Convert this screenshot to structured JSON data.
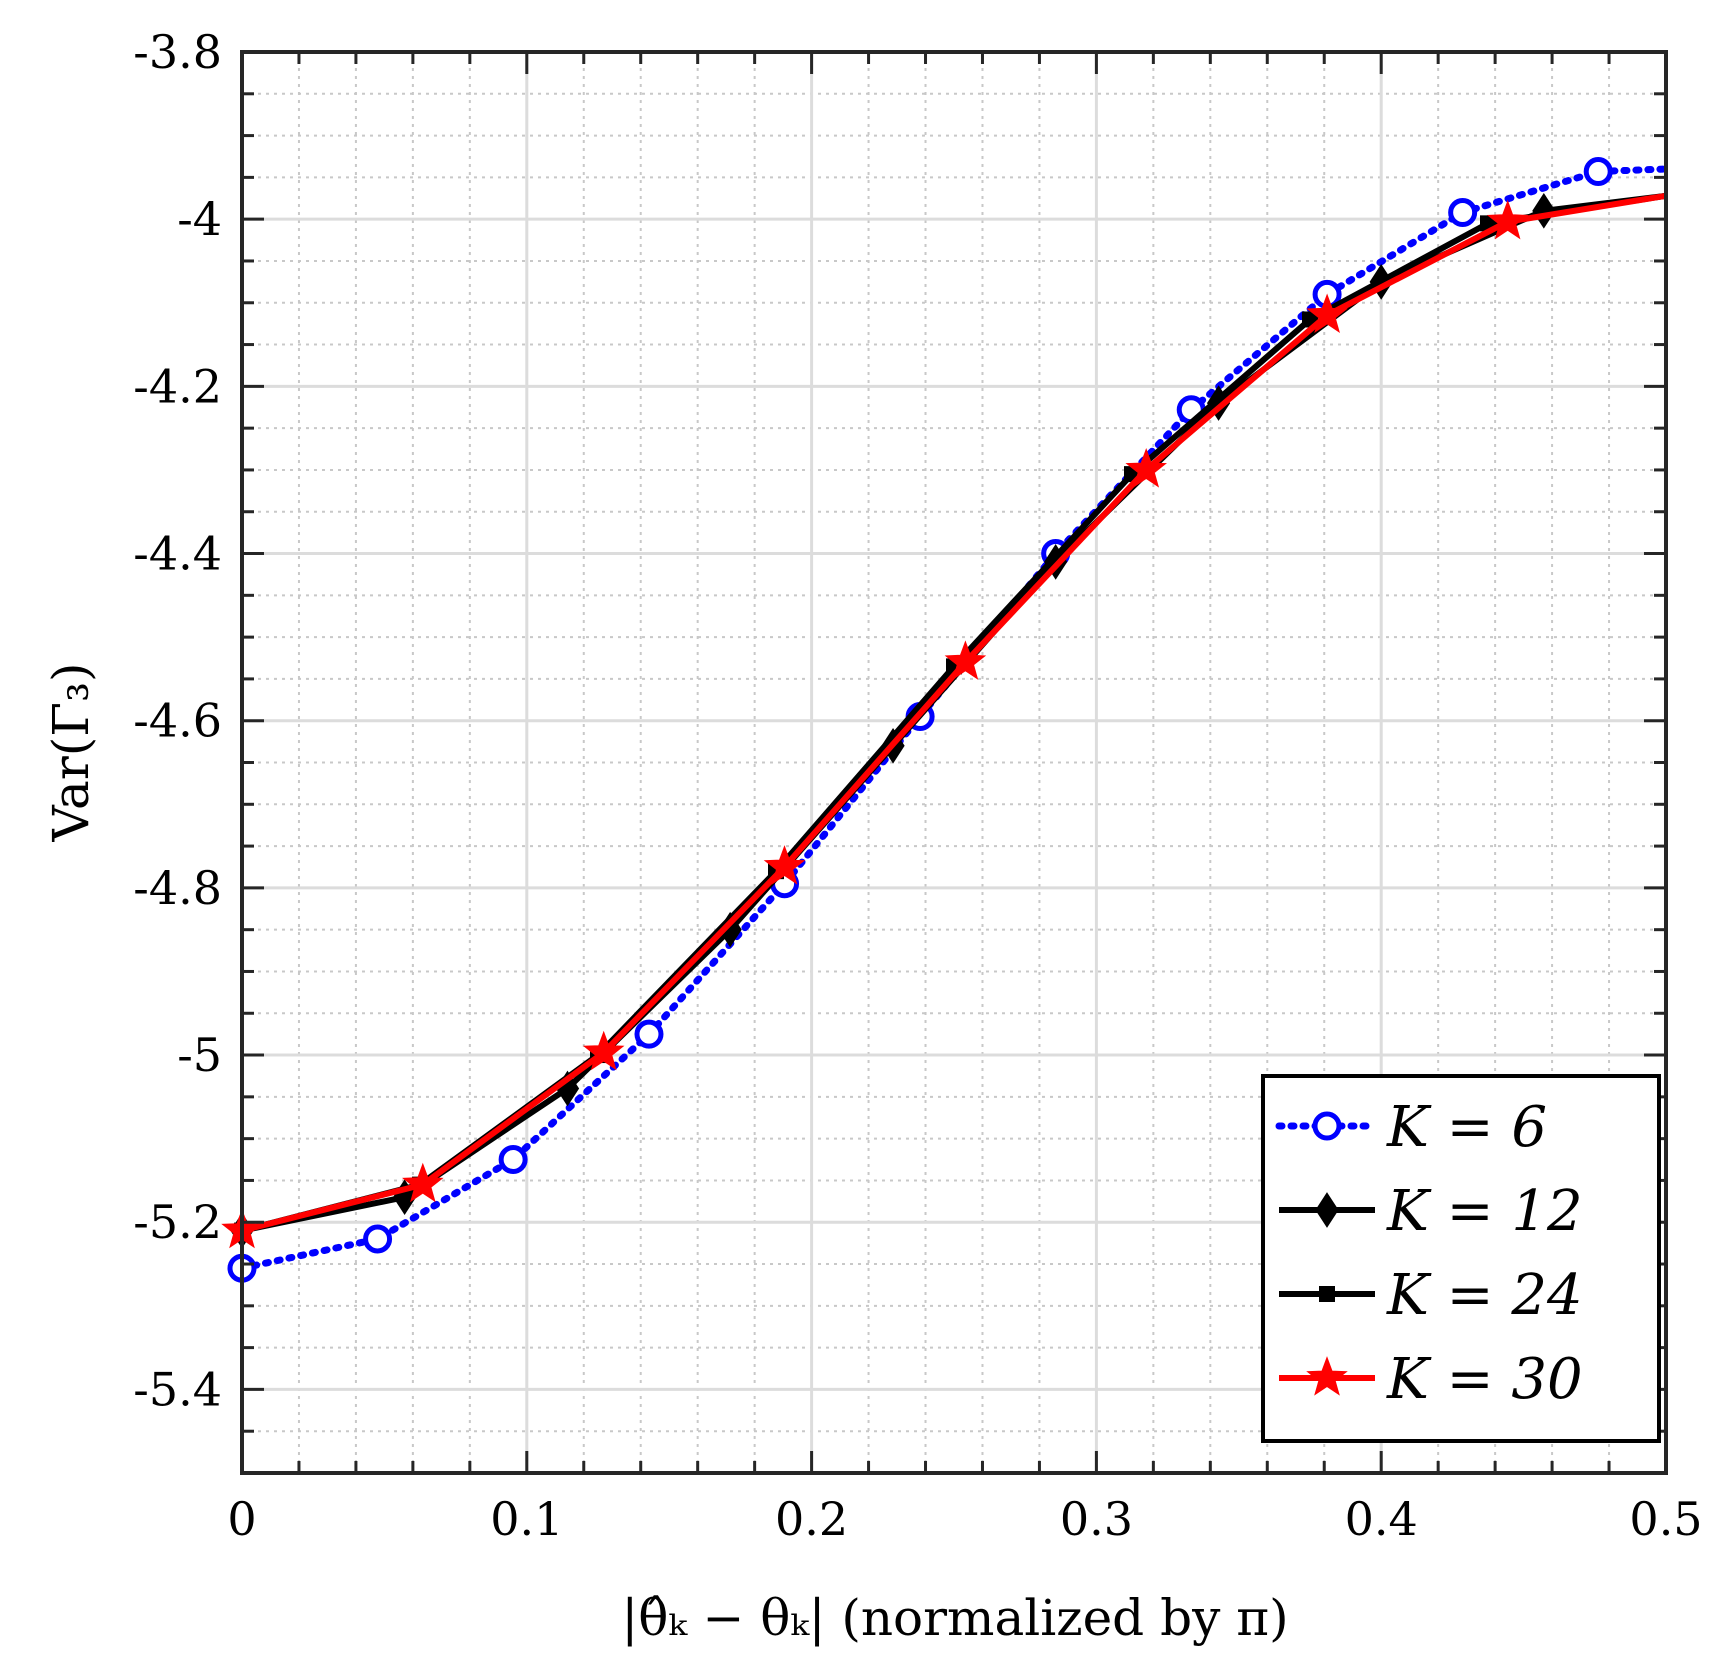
{
  "chart_data": {
    "type": "line",
    "xlabel": "|θ̂ₖ − θₖ| (normalized by π)",
    "ylabel": "Var(Γ₃)",
    "xlim": [
      0,
      0.5
    ],
    "ylim": [
      -5.5,
      -3.8
    ],
    "x_ticks": [
      "0",
      "0.1",
      "0.2",
      "0.3",
      "0.4",
      "0.5"
    ],
    "y_ticks": [
      "-3.8",
      "-4",
      "-4.2",
      "-4.4",
      "-4.6",
      "-4.8",
      "-5",
      "-5.2",
      "-5.4"
    ],
    "grid": true,
    "legend_position": "bottom-right",
    "series": [
      {
        "name": "K = 6",
        "color": "#0000ff",
        "line": "dotted",
        "marker": "circle",
        "x": [
          0,
          0.0476,
          0.0952,
          0.1429,
          0.1905,
          0.2381,
          0.2857,
          0.3333,
          0.381,
          0.4286,
          0.4762,
          0.5
        ],
        "y": [
          -5.255,
          -5.22,
          -5.125,
          -4.975,
          -4.795,
          -4.595,
          -4.4,
          -4.228,
          -4.09,
          -3.992,
          -3.943,
          -3.94
        ]
      },
      {
        "name": "K = 12",
        "color": "#000000",
        "line": "solid",
        "marker": "diamond",
        "x": [
          0,
          0.0571,
          0.1143,
          0.1714,
          0.2286,
          0.2857,
          0.3429,
          0.4,
          0.4571,
          0.5
        ],
        "y": [
          -5.21,
          -5.17,
          -5.04,
          -4.85,
          -4.63,
          -4.41,
          -4.22,
          -4.075,
          -3.99,
          -3.972
        ]
      },
      {
        "name": "K = 24",
        "color": "#000000",
        "line": "solid",
        "marker": "square",
        "x": [
          0,
          0.0625,
          0.125,
          0.1875,
          0.25,
          0.3125,
          0.375,
          0.4375,
          0.5
        ],
        "y": [
          -5.21,
          -5.155,
          -5.0,
          -4.78,
          -4.535,
          -4.305,
          -4.12,
          -4.005,
          -3.972
        ]
      },
      {
        "name": "K = 30",
        "color": "#ff0000",
        "line": "solid",
        "marker": "star",
        "x": [
          0,
          0.0635,
          0.127,
          0.1905,
          0.254,
          0.3175,
          0.381,
          0.4444,
          0.5
        ],
        "y": [
          -5.21,
          -5.155,
          -4.997,
          -4.775,
          -4.53,
          -4.3,
          -4.115,
          -4.003,
          -3.972
        ]
      }
    ]
  }
}
